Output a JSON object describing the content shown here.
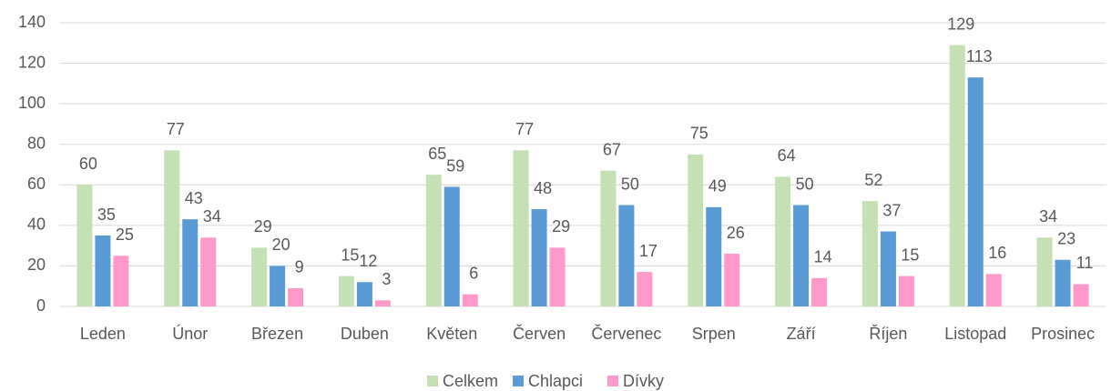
{
  "chart_data": {
    "type": "bar",
    "categories": [
      "Leden",
      "Únor",
      "Březen",
      "Duben",
      "Květen",
      "Červen",
      "Červenec",
      "Srpen",
      "Září",
      "Říjen",
      "Listopad",
      "Prosinec"
    ],
    "series": [
      {
        "name": "Celkem",
        "color": "#c5e0b4",
        "values": [
          60,
          77,
          29,
          15,
          65,
          77,
          67,
          75,
          64,
          52,
          129,
          34
        ]
      },
      {
        "name": "Chlapci",
        "color": "#5b9bd5",
        "values": [
          35,
          43,
          20,
          12,
          59,
          48,
          50,
          49,
          50,
          37,
          113,
          23
        ]
      },
      {
        "name": "Dívky",
        "color": "#ff99cc",
        "values": [
          25,
          34,
          9,
          3,
          6,
          29,
          17,
          26,
          14,
          15,
          16,
          11
        ]
      }
    ],
    "ylim": [
      0,
      140
    ],
    "yticks": [
      0,
      20,
      40,
      60,
      80,
      100,
      120,
      140
    ],
    "grid": true,
    "legend": "bottom"
  }
}
